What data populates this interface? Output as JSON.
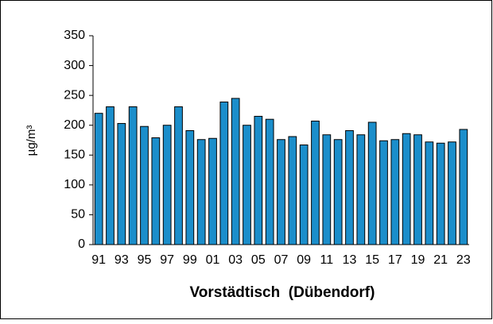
{
  "chart_data": {
    "type": "bar",
    "xlabel": "Vorstädtisch  (Dübendorf)",
    "ylabel": "µg/m³",
    "categories": [
      "91",
      null,
      "93",
      null,
      "95",
      null,
      "97",
      null,
      "99",
      null,
      "01",
      null,
      "03",
      null,
      "05",
      null,
      "07",
      null,
      "09",
      null,
      "11",
      null,
      "13",
      null,
      "15",
      null,
      "17",
      null,
      "19",
      null,
      "21",
      null,
      "23"
    ],
    "values": [
      220,
      231,
      203,
      231,
      198,
      179,
      200,
      231,
      191,
      176,
      178,
      239,
      245,
      200,
      215,
      210,
      176,
      181,
      167,
      207,
      184,
      176,
      191,
      184,
      205,
      174,
      176,
      186,
      184,
      172,
      170,
      172,
      193
    ],
    "color": "#1b8ecb",
    "ylim": [
      0,
      350
    ],
    "yticks": [
      0,
      50,
      100,
      150,
      200,
      250,
      300,
      350
    ],
    "grid": false
  }
}
